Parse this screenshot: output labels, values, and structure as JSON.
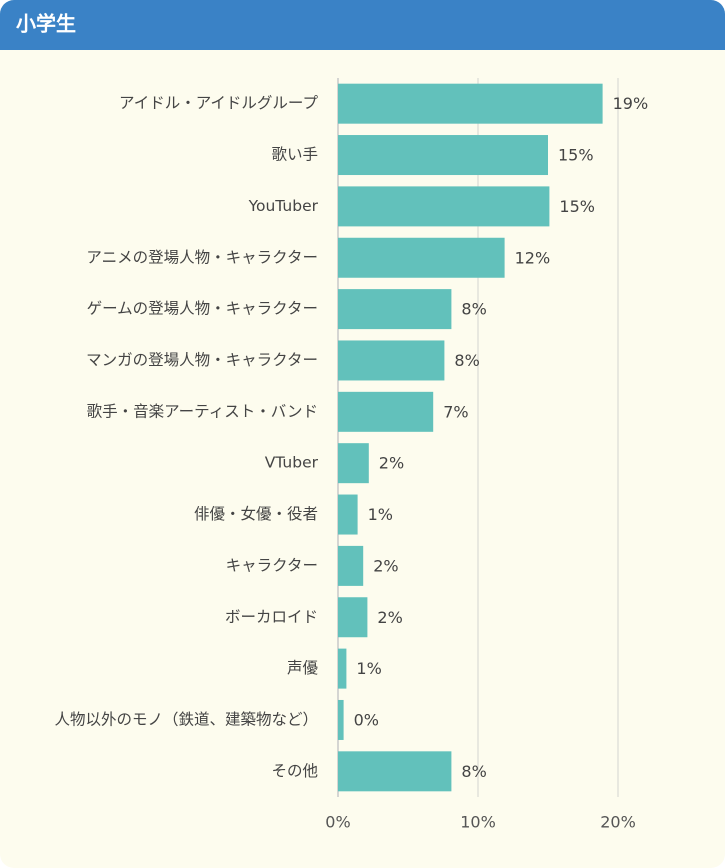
{
  "chart_data": {
    "type": "barh",
    "title": "小学生",
    "categories": [
      "アイドル・アイドルグループ",
      "歌い手",
      "YouTuber",
      "アニメの登場人物・キャラクター",
      "ゲームの登場人物・キャラクター",
      "マンガの登場人物・キャラクター",
      "歌手・音楽アーティスト・バンド",
      "VTuber",
      "俳優・女優・役者",
      "キャラクター",
      "ボーカロイド",
      "声優",
      "人物以外のモノ（鉄道、建築物など）",
      "その他"
    ],
    "values": [
      18.9,
      15.0,
      15.1,
      11.9,
      8.1,
      7.6,
      6.8,
      2.2,
      1.4,
      1.8,
      2.1,
      0.6,
      0.4,
      8.1
    ],
    "value_labels": [
      "19%",
      "15%",
      "15%",
      "12%",
      "8%",
      "8%",
      "7%",
      "2%",
      "1%",
      "2%",
      "2%",
      "1%",
      "0%",
      "8%"
    ],
    "color": "#62c1bb",
    "xlim": [
      0,
      26
    ],
    "xticks": [
      {
        "value": 0,
        "label": "0%"
      },
      {
        "value": 10,
        "label": "10%"
      },
      {
        "value": 20,
        "label": "20%"
      }
    ],
    "grid": true
  }
}
